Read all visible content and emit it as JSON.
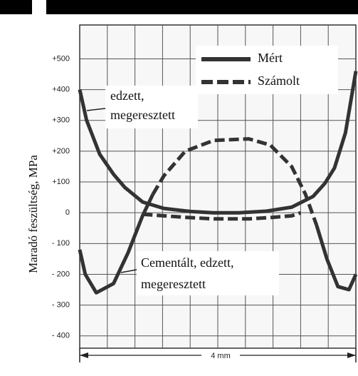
{
  "chart_data": {
    "type": "line",
    "y_label": "Maradó feszültség, MPa",
    "dimension_label": "4 mm",
    "xlim": [
      0,
      4
    ],
    "ylim": [
      -440,
      610
    ],
    "yticks": [
      {
        "value": 500,
        "label": "+500"
      },
      {
        "value": 400,
        "label": "+400"
      },
      {
        "value": 300,
        "label": "+300"
      },
      {
        "value": 200,
        "label": "+200"
      },
      {
        "value": 100,
        "label": "+100"
      },
      0,
      {
        "value": -100,
        "label": "- 100"
      },
      {
        "value": -200,
        "label": "- 200"
      },
      {
        "value": -300,
        "label": "- 300"
      },
      {
        "value": -400,
        "label": "- 400"
      }
    ],
    "grid": true,
    "color": "#333333",
    "series": [
      {
        "name": "Mért",
        "dashed": false,
        "x": [
          0,
          0.1,
          0.29,
          0.49,
          0.65,
          0.91,
          1.22,
          1.6,
          1.94,
          2.3,
          2.7,
          3.07,
          3.38,
          3.55,
          3.69,
          3.85,
          4
        ],
        "values": [
          400,
          300,
          190,
          125,
          83,
          35,
          14,
          4,
          0,
          0,
          5,
          18,
          53,
          95,
          145,
          260,
          460
        ]
      },
      {
        "name": "Számolt",
        "dashed": true,
        "x": [
          0.91,
          1.22,
          1.53,
          1.94,
          2.45,
          2.8,
          3.07,
          3.2
        ],
        "values": [
          -5,
          -10,
          -15,
          -20,
          -20,
          -15,
          -10,
          0
        ]
      },
      {
        "dashed": false,
        "x": [
          0,
          0.08,
          0.24,
          0.49,
          0.7,
          0.91,
          1.06
        ],
        "values": [
          -120,
          -200,
          -260,
          -230,
          -130,
          -10,
          60
        ]
      },
      {
        "dashed": true,
        "x": [
          1.06,
          1.22,
          1.53,
          1.94,
          2.45,
          2.76,
          3.07,
          3.27,
          3.43
        ],
        "values": [
          60,
          120,
          200,
          235,
          240,
          220,
          150,
          60,
          -40
        ]
      },
      {
        "dashed": false,
        "x": [
          3.43,
          3.58,
          3.74,
          3.9,
          4
        ],
        "values": [
          -40,
          -150,
          -240,
          -250,
          -200
        ]
      }
    ],
    "annotations": [
      {
        "lines": [
          "edzett,",
          "megeresztett"
        ]
      },
      {
        "lines": [
          "Cementált, edzett,",
          "megeresztett"
        ]
      }
    ]
  }
}
